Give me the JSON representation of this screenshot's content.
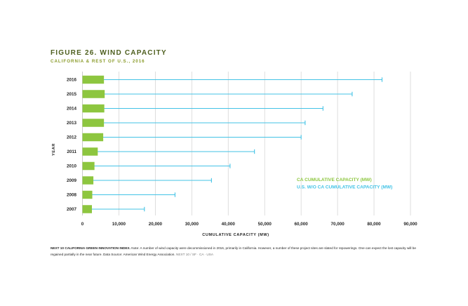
{
  "figure": {
    "title": "FIGURE 26. WIND CAPACITY",
    "subtitle": "CALIFORNIA & REST OF U.S., 2016"
  },
  "chart_data": {
    "type": "bar",
    "orientation": "horizontal",
    "title": "FIGURE 26. WIND CAPACITY",
    "subtitle": "CALIFORNIA & REST OF U.S., 2016",
    "xlabel": "CUMULATIVE CAPACITY (MW)",
    "ylabel": "YEAR",
    "xlim": [
      0,
      90000
    ],
    "xticks": [
      0,
      10000,
      20000,
      30000,
      40000,
      50000,
      60000,
      70000,
      80000,
      90000
    ],
    "xtick_labels": [
      "0",
      "10,000",
      "20,000",
      "30,000",
      "40,000",
      "50,000",
      "60,000",
      "70,000",
      "80,000",
      "90,000"
    ],
    "categories": [
      "2016",
      "2015",
      "2014",
      "2013",
      "2012",
      "2011",
      "2010",
      "2009",
      "2008",
      "2007"
    ],
    "series": [
      {
        "name": "CA CUMULATIVE CAPACITY (MW)",
        "mark": "bar",
        "color": "#8dc63f",
        "values": [
          5900,
          6100,
          6000,
          5900,
          5700,
          4200,
          3300,
          3000,
          2700,
          2600
        ]
      },
      {
        "name": "U.S. W/O CA CUMULATIVE CAPACITY (MW)",
        "mark": "range-line",
        "color": "#43c3e6",
        "values": [
          82200,
          74000,
          66000,
          61100,
          60000,
          47200,
          40500,
          35400,
          25400,
          17000
        ]
      }
    ],
    "grid": "vertical",
    "legend_position": "right"
  },
  "note": {
    "brand": "NEXT 10 CALIFORNIA GREEN INNOVATION INDEX.",
    "text": " Note: A number of wind capacity were decommissioned in 2016, primarily in California. However, a number of these project sites are slated for repowerings. One can expect the lost capacity will be regained partially in the near future. Data Source: American Wind Energy Association.",
    "source_tag": " NEXT 10 / SF · CA · USA"
  }
}
